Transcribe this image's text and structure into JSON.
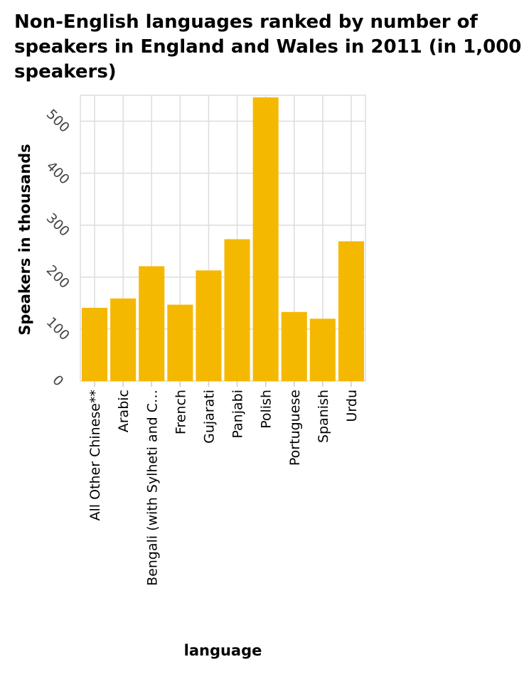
{
  "chart_data": {
    "type": "bar",
    "title": "Non-English languages ranked by number of speakers in England and Wales in 2011 (in 1,000 speakers)",
    "xlabel": "language",
    "ylabel": "Speakers in thousands",
    "categories": [
      "All Other Chinese**",
      "Arabic",
      "Bengali (with Sylheti and C…",
      "French",
      "Gujarati",
      "Panjabi",
      "Polish",
      "Portuguese",
      "Spanish",
      "Urdu"
    ],
    "values": [
      141,
      159,
      221,
      147,
      213,
      273,
      546,
      133,
      120,
      269
    ],
    "yticks": [
      0,
      100,
      200,
      300,
      400,
      500
    ],
    "ylim": [
      0,
      550
    ],
    "bar_color": "#f5b800",
    "grid": true
  }
}
